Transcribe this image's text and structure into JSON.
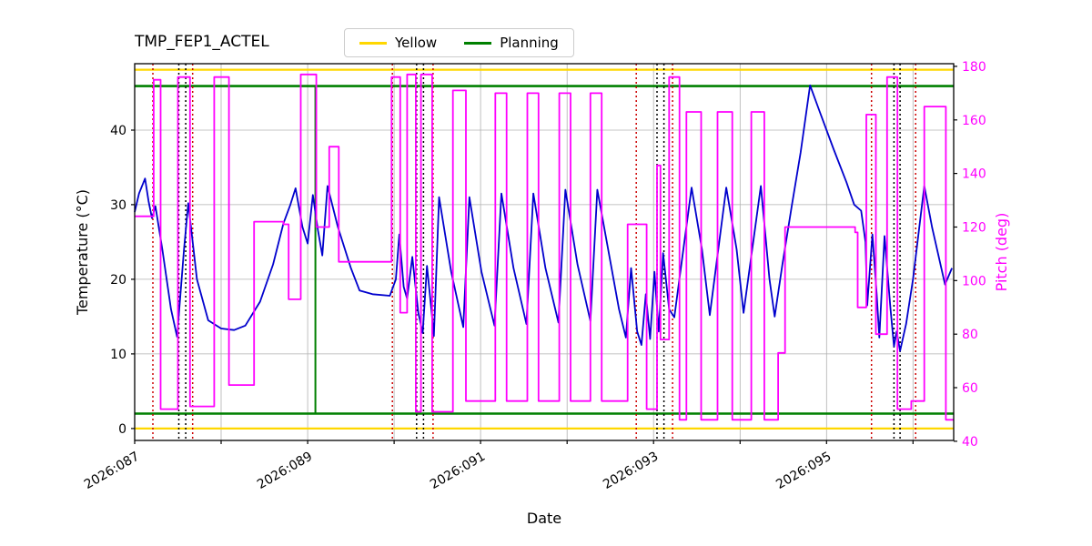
{
  "chart_data": {
    "type": "line",
    "title": "TMP_FEP1_ACTEL",
    "xlabel": "Date",
    "ylabel_left": "Temperature (°C)",
    "ylabel_right": "Pitch (deg)",
    "xlim": [
      87.0,
      96.47
    ],
    "ylim_left": [
      -1.6,
      48.9
    ],
    "ylim_right": [
      40.3,
      181.0
    ],
    "grid": true,
    "grid_days": [
      87,
      88,
      89,
      90,
      91,
      92,
      93,
      94,
      95,
      96
    ],
    "xticks": [
      {
        "day": 87,
        "label": "2026:087"
      },
      {
        "day": 89,
        "label": "2026:089"
      },
      {
        "day": 91,
        "label": "2026:091"
      },
      {
        "day": 93,
        "label": "2026:093"
      },
      {
        "day": 95,
        "label": "2026:095"
      }
    ],
    "yticks_left": [
      0,
      10,
      20,
      30,
      40
    ],
    "yticks_right": [
      40,
      60,
      80,
      100,
      120,
      140,
      160,
      180
    ],
    "legend": [
      {
        "label": "Yellow",
        "color": "#ffd700"
      },
      {
        "label": "Planning",
        "color": "#008000"
      }
    ],
    "colors": {
      "temperature": "#0000cd",
      "pitch": "#ff00ff",
      "yellow_limit": "#ffd700",
      "planning_limit": "#008000",
      "red_marker": "#cc0000",
      "black_marker": "#000000",
      "grid": "#b0b0b0",
      "spine": "#000000"
    },
    "hlines": [
      {
        "name": "yellow-upper-limit",
        "y": 48.1,
        "color": "#ffd700",
        "width": 2.2
      },
      {
        "name": "yellow-lower-limit",
        "y": 0.0,
        "color": "#ffd700",
        "width": 2.2
      },
      {
        "name": "planning-upper-limit",
        "y": 45.9,
        "color": "#008000",
        "width": 2.6
      },
      {
        "name": "planning-lower-limit",
        "y": 2.0,
        "color": "#008000",
        "width": 2.6
      }
    ],
    "vlines": {
      "red_dotted_days": [
        87.21,
        87.67,
        89.98,
        90.45,
        92.8,
        93.22,
        95.52,
        96.03
      ],
      "black_dotted_days": [
        87.51,
        87.59,
        90.26,
        90.34,
        93.04,
        93.12,
        95.78,
        95.85
      ],
      "green_solid": {
        "day": 89.09,
        "from": 2.0,
        "to": 45.9
      }
    },
    "series": [
      {
        "name": "Temperature",
        "axis": "left",
        "color": "#0000cd",
        "style": "linear",
        "points": [
          [
            87.0,
            29.0
          ],
          [
            87.05,
            31.5
          ],
          [
            87.12,
            33.5
          ],
          [
            87.16,
            30.5
          ],
          [
            87.2,
            28.2
          ],
          [
            87.24,
            29.8
          ],
          [
            87.32,
            24.0
          ],
          [
            87.42,
            16.0
          ],
          [
            87.49,
            12.3
          ],
          [
            87.57,
            24.0
          ],
          [
            87.62,
            30.2
          ],
          [
            87.72,
            20.0
          ],
          [
            87.85,
            14.5
          ],
          [
            88.0,
            13.4
          ],
          [
            88.15,
            13.2
          ],
          [
            88.28,
            13.8
          ],
          [
            88.45,
            17.0
          ],
          [
            88.6,
            22.0
          ],
          [
            88.72,
            27.5
          ],
          [
            88.8,
            30.0
          ],
          [
            88.86,
            32.2
          ],
          [
            88.94,
            27.0
          ],
          [
            89.0,
            24.8
          ],
          [
            89.06,
            31.3
          ],
          [
            89.12,
            26.5
          ],
          [
            89.17,
            23.2
          ],
          [
            89.23,
            32.5
          ],
          [
            89.35,
            27.0
          ],
          [
            89.5,
            21.5
          ],
          [
            89.6,
            18.5
          ],
          [
            89.75,
            18.0
          ],
          [
            89.95,
            17.8
          ],
          [
            90.02,
            20.0
          ],
          [
            90.06,
            26.0
          ],
          [
            90.11,
            19.0
          ],
          [
            90.15,
            17.4
          ],
          [
            90.21,
            23.0
          ],
          [
            90.28,
            15.5
          ],
          [
            90.33,
            12.8
          ],
          [
            90.38,
            21.8
          ],
          [
            90.43,
            16.0
          ],
          [
            90.46,
            12.4
          ],
          [
            90.52,
            31.0
          ],
          [
            90.66,
            21.0
          ],
          [
            90.8,
            13.6
          ],
          [
            90.87,
            31.0
          ],
          [
            91.01,
            21.0
          ],
          [
            91.16,
            13.8
          ],
          [
            91.24,
            31.5
          ],
          [
            91.38,
            21.5
          ],
          [
            91.53,
            14.0
          ],
          [
            91.61,
            31.5
          ],
          [
            91.75,
            21.5
          ],
          [
            91.9,
            14.2
          ],
          [
            91.98,
            32.0
          ],
          [
            92.12,
            22.0
          ],
          [
            92.27,
            14.4
          ],
          [
            92.35,
            32.0
          ],
          [
            92.49,
            23.0
          ],
          [
            92.6,
            16.0
          ],
          [
            92.68,
            12.2
          ],
          [
            92.74,
            21.5
          ],
          [
            92.81,
            13.0
          ],
          [
            92.86,
            11.2
          ],
          [
            92.91,
            18.0
          ],
          [
            92.96,
            12.0
          ],
          [
            93.01,
            21.0
          ],
          [
            93.06,
            13.0
          ],
          [
            93.11,
            23.5
          ],
          [
            93.18,
            16.0
          ],
          [
            93.24,
            14.9
          ],
          [
            93.44,
            32.3
          ],
          [
            93.56,
            24.0
          ],
          [
            93.65,
            15.2
          ],
          [
            93.84,
            32.3
          ],
          [
            93.96,
            24.0
          ],
          [
            94.04,
            15.5
          ],
          [
            94.24,
            32.5
          ],
          [
            94.34,
            20.0
          ],
          [
            94.4,
            15.0
          ],
          [
            94.49,
            22.0
          ],
          [
            94.6,
            30.0
          ],
          [
            94.7,
            37.0
          ],
          [
            94.81,
            46.0
          ],
          [
            94.92,
            42.5
          ],
          [
            95.08,
            37.5
          ],
          [
            95.23,
            33.0
          ],
          [
            95.32,
            30.0
          ],
          [
            95.4,
            29.2
          ],
          [
            95.45,
            25.0
          ],
          [
            95.47,
            16.5
          ],
          [
            95.53,
            26.0
          ],
          [
            95.58,
            18.0
          ],
          [
            95.61,
            12.2
          ],
          [
            95.67,
            25.8
          ],
          [
            95.74,
            16.0
          ],
          [
            95.78,
            11.0
          ],
          [
            95.81,
            13.0
          ],
          [
            95.85,
            10.4
          ],
          [
            95.92,
            14.0
          ],
          [
            96.0,
            20.0
          ],
          [
            96.13,
            32.5
          ],
          [
            96.22,
            27.0
          ],
          [
            96.37,
            19.3
          ],
          [
            96.45,
            21.5
          ]
        ]
      },
      {
        "name": "Pitch",
        "axis": "right",
        "color": "#ff00ff",
        "style": "steps-post",
        "points": [
          [
            87.0,
            124
          ],
          [
            87.22,
            175
          ],
          [
            87.3,
            52
          ],
          [
            87.5,
            176
          ],
          [
            87.64,
            53
          ],
          [
            87.92,
            176
          ],
          [
            88.09,
            61
          ],
          [
            88.38,
            122
          ],
          [
            88.72,
            121
          ],
          [
            88.78,
            93
          ],
          [
            88.92,
            177
          ],
          [
            89.1,
            120
          ],
          [
            89.25,
            150
          ],
          [
            89.36,
            107
          ],
          [
            89.97,
            176
          ],
          [
            90.07,
            88
          ],
          [
            90.15,
            177
          ],
          [
            90.25,
            51
          ],
          [
            90.31,
            177
          ],
          [
            90.44,
            51
          ],
          [
            90.68,
            171
          ],
          [
            90.83,
            55
          ],
          [
            91.17,
            170
          ],
          [
            91.3,
            55
          ],
          [
            91.54,
            170
          ],
          [
            91.67,
            55
          ],
          [
            91.91,
            170
          ],
          [
            92.04,
            55
          ],
          [
            92.27,
            170
          ],
          [
            92.4,
            55
          ],
          [
            92.7,
            121
          ],
          [
            92.92,
            52
          ],
          [
            93.04,
            143
          ],
          [
            93.08,
            78
          ],
          [
            93.18,
            176
          ],
          [
            93.3,
            48
          ],
          [
            93.38,
            163
          ],
          [
            93.55,
            48
          ],
          [
            93.74,
            163
          ],
          [
            93.91,
            48
          ],
          [
            94.13,
            163
          ],
          [
            94.28,
            48
          ],
          [
            94.44,
            73
          ],
          [
            94.52,
            120
          ],
          [
            95.33,
            118
          ],
          [
            95.36,
            90
          ],
          [
            95.46,
            162
          ],
          [
            95.57,
            80
          ],
          [
            95.7,
            176
          ],
          [
            95.82,
            52
          ],
          [
            95.98,
            55
          ],
          [
            96.13,
            165
          ],
          [
            96.38,
            48
          ]
        ]
      }
    ]
  }
}
